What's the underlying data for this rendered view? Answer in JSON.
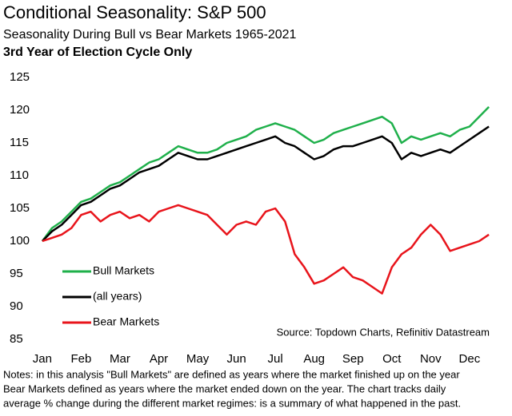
{
  "chart_data": {
    "type": "line",
    "title": "Conditional Seasonality: S&P 500",
    "subtitle": "Seasonality During Bull vs Bear Markets 1965-2021",
    "subtitle2": "3rd Year of Election Cycle Only",
    "source": "Source: Topdown Charts, Refinitiv Datastream",
    "notes": [
      "Notes: in this analysis \"Bull Markets\" are defined as years where the market finished up on the year",
      "Bear Markets defined as years where the market ended down on the year.  The chart tracks daily",
      "average % change during the different market regimes: is a summary of what happened in the past."
    ],
    "x": [
      0,
      0.25,
      0.5,
      0.75,
      1,
      1.25,
      1.5,
      1.75,
      2,
      2.25,
      2.5,
      2.75,
      3,
      3.25,
      3.5,
      3.75,
      4,
      4.25,
      4.5,
      4.75,
      5,
      5.25,
      5.5,
      5.75,
      6,
      6.25,
      6.5,
      6.75,
      7,
      7.25,
      7.5,
      7.75,
      8,
      8.25,
      8.5,
      8.75,
      9,
      9.25,
      9.5,
      9.75,
      10,
      10.25,
      10.5,
      10.75,
      11,
      11.25,
      11.5
    ],
    "xlim": [
      -0.1,
      11.6
    ],
    "xticks": [
      {
        "value": 0,
        "label": "Jan"
      },
      {
        "value": 1,
        "label": "Feb"
      },
      {
        "value": 2,
        "label": "Mar"
      },
      {
        "value": 3,
        "label": "Apr"
      },
      {
        "value": 4,
        "label": "May"
      },
      {
        "value": 5,
        "label": "Jun"
      },
      {
        "value": 6,
        "label": "Jul"
      },
      {
        "value": 7,
        "label": "Aug"
      },
      {
        "value": 8,
        "label": "Sep"
      },
      {
        "value": 9,
        "label": "Oct"
      },
      {
        "value": 10,
        "label": "Nov"
      },
      {
        "value": 11,
        "label": "Dec"
      }
    ],
    "ylim": [
      85,
      125
    ],
    "yticks": [
      85,
      90,
      95,
      100,
      105,
      110,
      115,
      120,
      125
    ],
    "grid": false,
    "legend": "left",
    "series": [
      {
        "name": "Bull Markets",
        "color": "#1fb04b",
        "values": [
          100,
          102,
          103,
          104.5,
          106,
          106.5,
          107.5,
          108.5,
          109,
          110,
          111,
          112,
          112.5,
          113.5,
          114.5,
          114,
          113.5,
          113.5,
          114,
          115,
          115.5,
          116,
          117,
          117.5,
          118,
          117.5,
          117,
          116,
          115,
          115.5,
          116.5,
          117,
          117.5,
          118,
          118.5,
          119,
          118,
          115,
          116,
          115.5,
          116,
          116.5,
          116,
          117,
          117.5,
          119,
          120.5
        ]
      },
      {
        "name": "(all years)",
        "color": "#000000",
        "values": [
          100,
          101.5,
          102.5,
          104,
          105.5,
          106,
          107,
          108,
          108.5,
          109.5,
          110.5,
          111,
          111.5,
          112.5,
          113.5,
          113,
          112.5,
          112.5,
          113,
          113.5,
          114,
          114.5,
          115,
          115.5,
          116,
          115,
          114.5,
          113.5,
          112.5,
          113,
          114,
          114.5,
          114.5,
          115,
          115.5,
          116,
          115,
          112.5,
          113.5,
          113,
          113.5,
          114,
          113.5,
          114.5,
          115.5,
          116.5,
          117.5
        ]
      },
      {
        "name": "Bear Markets",
        "color": "#e8141b",
        "values": [
          100,
          100.5,
          101,
          102,
          104,
          104.5,
          103,
          104,
          104.5,
          103.5,
          104,
          103,
          104.5,
          105,
          105.5,
          105,
          104.5,
          104,
          102.5,
          101,
          102.5,
          103,
          102.5,
          104.5,
          105,
          103,
          98,
          96,
          93.5,
          94,
          95,
          96,
          94.5,
          94,
          93,
          92,
          96,
          98,
          99,
          101,
          102.5,
          101,
          98.5,
          99,
          99.5,
          100,
          101
        ]
      }
    ]
  }
}
